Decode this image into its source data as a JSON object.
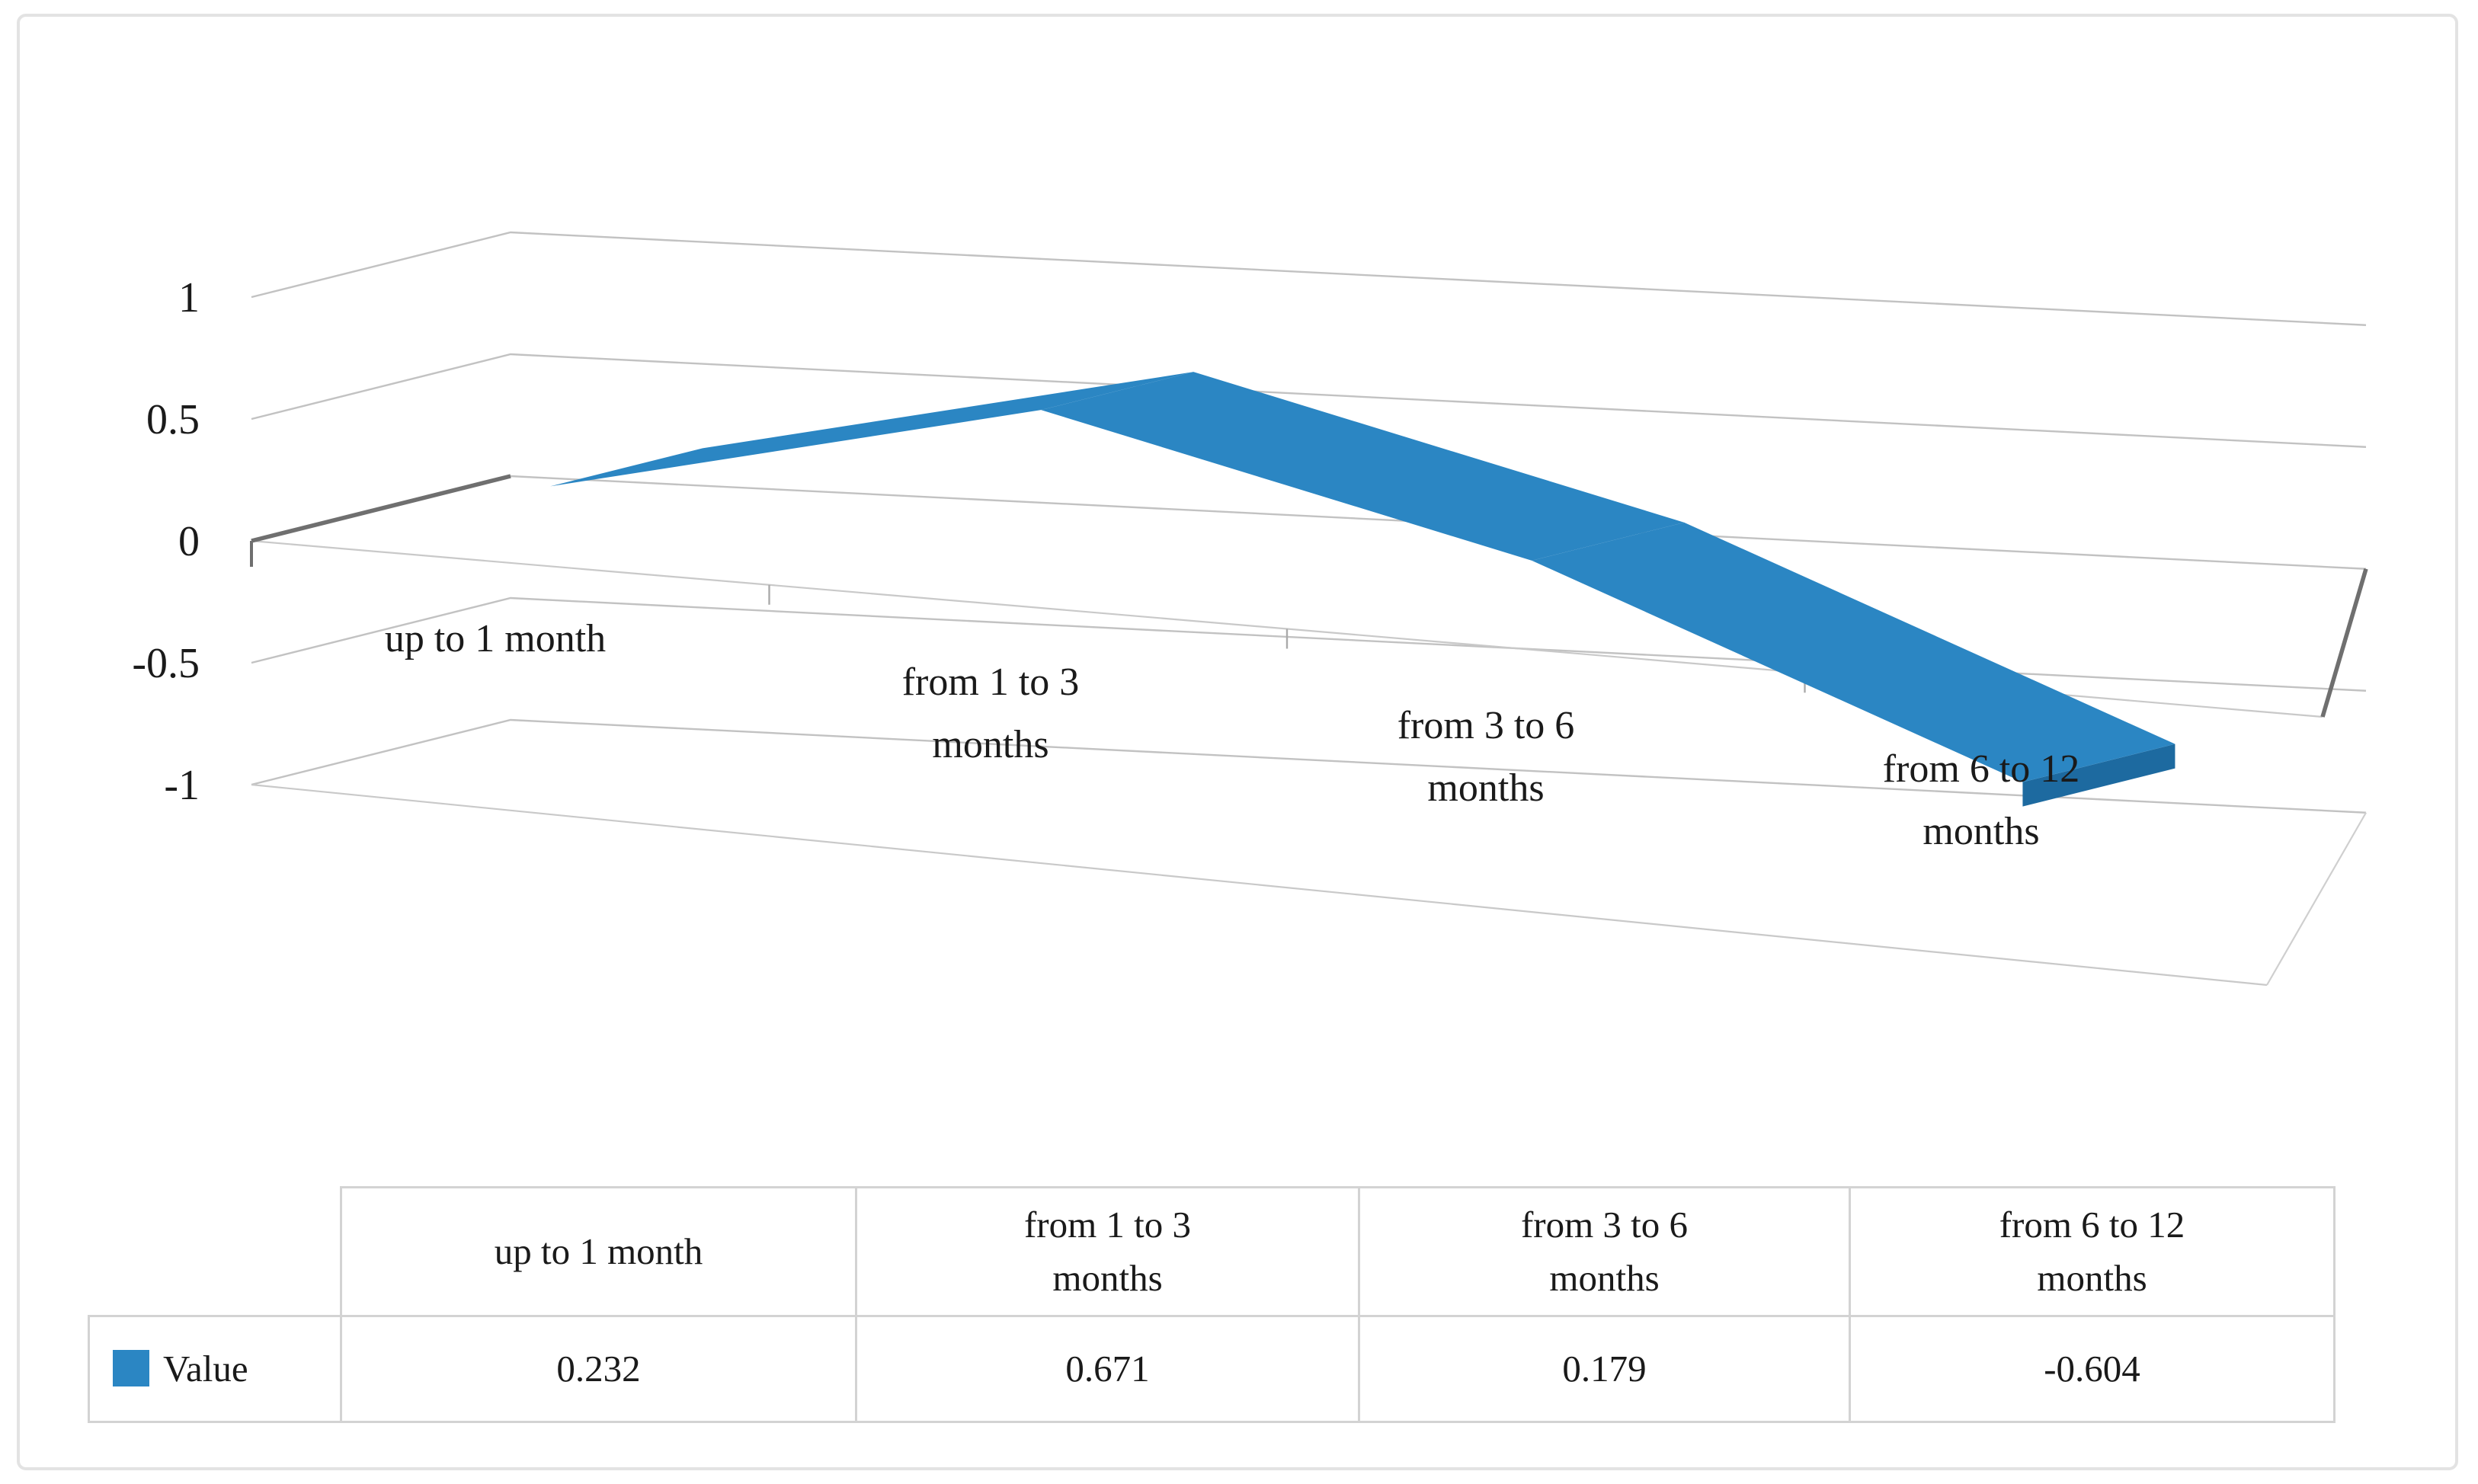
{
  "figure": {
    "background": "#ffffff",
    "border_color": "#e3e3e3"
  },
  "chart_data": {
    "type": "line",
    "variant": "3d-ribbon",
    "title": "",
    "xlabel": "",
    "ylabel": "",
    "categories": [
      "up to 1 month",
      "from 1 to 3\nmonths",
      "from 3 to 6\nmonths",
      "from 6 to 12\nmonths"
    ],
    "series": [
      {
        "name": "Value",
        "values": [
          0.232,
          0.671,
          0.179,
          -0.604
        ],
        "color": "#2b86c3",
        "edge_color": "#1d6aa0"
      }
    ],
    "ylim": [
      -1,
      1
    ],
    "y_ticks": [
      "1",
      "0.5",
      "0",
      "-0.5",
      "-1"
    ],
    "grid": true,
    "grid_color": "#c2c2c2",
    "axis_color": "#6f6f6f",
    "tick_color": "#aaaaaa",
    "text_color": "#1a1a1a",
    "legend_position": "bottom-table"
  },
  "table": {
    "border_color": "#d3d3d3",
    "values": [
      "0.232",
      "0.671",
      "0.179",
      "-0.604"
    ]
  }
}
